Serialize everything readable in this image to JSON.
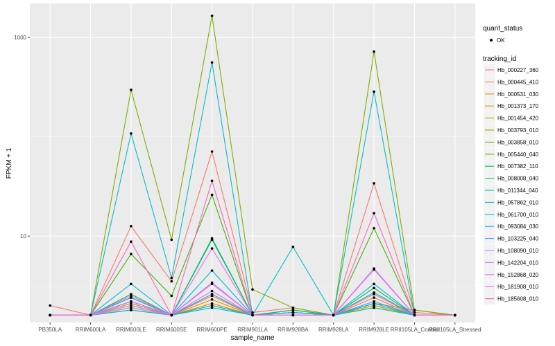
{
  "chart_data": {
    "type": "line",
    "xlabel": "sample_name",
    "ylabel": "FPKM + 1",
    "y_scale": "log10",
    "ylim": [
      1.35,
      2200
    ],
    "y_ticks": [
      10,
      1000
    ],
    "y_tick_labels": [
      "10",
      "1000"
    ],
    "grid": true,
    "legend_position": "right",
    "categories": [
      "PB350LA",
      "RRIM600LA",
      "RRIM600LE",
      "RRIM600SE",
      "RRIM600PE",
      "RRIM901LA",
      "RRIM928BA",
      "RRIM928LA",
      "RRIM928LE",
      "RRII105LA_Control",
      "RRII105LA_Stressed"
    ],
    "shape_legend": {
      "title": "quant_status",
      "items": [
        "OK"
      ]
    },
    "color_legend_title": "tracking_id",
    "series": [
      {
        "name": "Hb_000227_360",
        "color": "#F8766D",
        "values": [
          2.0,
          1.6,
          12.6,
          3.5,
          71,
          1.7,
          1.9,
          1.6,
          34,
          1.7,
          1.6
        ]
      },
      {
        "name": "Hb_000445_410",
        "color": "#EF7F49",
        "values": [
          1.6,
          1.6,
          2.4,
          1.6,
          2.5,
          1.6,
          1.8,
          1.6,
          2.4,
          1.6,
          1.6
        ]
      },
      {
        "name": "Hb_000531_030",
        "color": "#E38900",
        "values": [
          1.6,
          1.6,
          2.1,
          1.6,
          2.1,
          1.6,
          1.7,
          1.6,
          2.0,
          1.6,
          1.6
        ]
      },
      {
        "name": "Hb_001373_170",
        "color": "#D39200",
        "values": [
          1.6,
          1.6,
          1.9,
          1.6,
          2.3,
          1.6,
          1.8,
          1.6,
          1.9,
          1.6,
          1.6
        ]
      },
      {
        "name": "Hb_001454_420",
        "color": "#C09B00",
        "values": [
          1.6,
          1.6,
          2.0,
          1.6,
          2.0,
          1.6,
          1.7,
          1.6,
          2.0,
          1.6,
          1.6
        ]
      },
      {
        "name": "Hb_003793_010",
        "color": "#A3A500",
        "values": [
          1.6,
          1.6,
          1.8,
          1.6,
          2.6,
          1.6,
          1.8,
          1.6,
          2.1,
          1.8,
          1.6
        ]
      },
      {
        "name": "Hb_003858_010",
        "color": "#7CAE00",
        "values": [
          1.6,
          1.6,
          297,
          9.2,
          1650,
          2.9,
          1.9,
          1.6,
          720,
          1.8,
          1.6
        ]
      },
      {
        "name": "Hb_005440_040",
        "color": "#39B600",
        "values": [
          1.6,
          1.6,
          6.6,
          2.5,
          26,
          1.6,
          1.7,
          1.6,
          12,
          1.6,
          1.6
        ]
      },
      {
        "name": "Hb_007382_110",
        "color": "#00BB4E",
        "values": [
          1.6,
          1.6,
          2.6,
          1.6,
          9.5,
          1.6,
          1.7,
          1.6,
          3.0,
          1.6,
          1.6
        ]
      },
      {
        "name": "Hb_008008_040",
        "color": "#00BF7D",
        "values": [
          1.6,
          1.6,
          2.2,
          1.6,
          9.2,
          1.6,
          1.8,
          1.6,
          2.7,
          1.6,
          1.6
        ]
      },
      {
        "name": "Hb_011344_040",
        "color": "#00C1A3",
        "values": [
          1.6,
          1.6,
          1.8,
          1.6,
          2.0,
          1.6,
          1.7,
          1.6,
          1.9,
          1.6,
          1.6
        ]
      },
      {
        "name": "Hb_057862_010",
        "color": "#00BFC4",
        "values": [
          1.6,
          1.6,
          108,
          3.8,
          560,
          1.6,
          7.8,
          1.6,
          285,
          1.6,
          1.6
        ]
      },
      {
        "name": "Hb_061700_010",
        "color": "#00BAE0",
        "values": [
          1.6,
          1.6,
          3.3,
          1.6,
          4.5,
          1.6,
          1.6,
          1.6,
          3.3,
          1.6,
          1.6
        ]
      },
      {
        "name": "Hb_093084_030",
        "color": "#00B0F6",
        "values": [
          1.6,
          1.6,
          2.4,
          1.6,
          1.9,
          1.6,
          1.7,
          1.6,
          2.1,
          1.6,
          1.6
        ]
      },
      {
        "name": "Hb_103225_040",
        "color": "#35A2FF",
        "values": [
          1.6,
          1.6,
          2.2,
          1.6,
          2.6,
          1.6,
          1.7,
          1.6,
          2.2,
          1.6,
          1.6
        ]
      },
      {
        "name": "Hb_108090_010",
        "color": "#9590FF",
        "values": [
          1.6,
          1.6,
          2.0,
          1.6,
          3.4,
          1.6,
          1.6,
          1.6,
          4.7,
          1.6,
          1.6
        ]
      },
      {
        "name": "Hb_142204_010",
        "color": "#C77CFF",
        "values": [
          1.6,
          1.6,
          1.9,
          1.6,
          2.8,
          1.6,
          1.6,
          1.6,
          4.7,
          1.6,
          1.6
        ]
      },
      {
        "name": "Hb_152868_020",
        "color": "#E76BF3",
        "values": [
          1.6,
          1.6,
          2.2,
          1.6,
          7.5,
          1.6,
          1.6,
          1.6,
          4.6,
          1.6,
          1.6
        ]
      },
      {
        "name": "Hb_181908_010",
        "color": "#FA62DB",
        "values": [
          1.6,
          1.6,
          2.5,
          1.6,
          3.3,
          1.6,
          1.6,
          1.6,
          2.6,
          1.6,
          1.6
        ]
      },
      {
        "name": "Hb_185608_010",
        "color": "#FF62BC",
        "values": [
          1.6,
          1.6,
          8.8,
          1.6,
          36,
          1.6,
          1.6,
          1.6,
          17,
          1.6,
          1.6
        ]
      }
    ]
  }
}
